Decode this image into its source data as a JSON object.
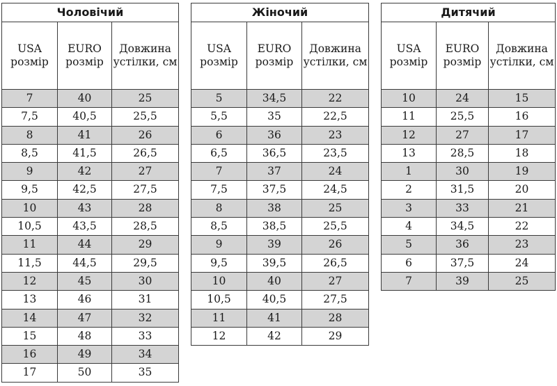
{
  "headers": {
    "usa": "USA розмір",
    "euro": "EURO розмір",
    "length": "Довжина устілки, см"
  },
  "tables": [
    {
      "key": "men",
      "title": "Чоловічий",
      "rows": [
        [
          "7",
          "40",
          "25"
        ],
        [
          "7,5",
          "40,5",
          "25,5"
        ],
        [
          "8",
          "41",
          "26"
        ],
        [
          "8,5",
          "41,5",
          "26,5"
        ],
        [
          "9",
          "42",
          "27"
        ],
        [
          "9,5",
          "42,5",
          "27,5"
        ],
        [
          "10",
          "43",
          "28"
        ],
        [
          "10,5",
          "43,5",
          "28,5"
        ],
        [
          "11",
          "44",
          "29"
        ],
        [
          "11,5",
          "44,5",
          "29,5"
        ],
        [
          "12",
          "45",
          "30"
        ],
        [
          "13",
          "46",
          "31"
        ],
        [
          "14",
          "47",
          "32"
        ],
        [
          "15",
          "48",
          "33"
        ],
        [
          "16",
          "49",
          "34"
        ],
        [
          "17",
          "50",
          "35"
        ]
      ]
    },
    {
      "key": "women",
      "title": "Жіночий",
      "rows": [
        [
          "5",
          "34,5",
          "22"
        ],
        [
          "5,5",
          "35",
          "22,5"
        ],
        [
          "6",
          "36",
          "23"
        ],
        [
          "6,5",
          "36,5",
          "23,5"
        ],
        [
          "7",
          "37",
          "24"
        ],
        [
          "7,5",
          "37,5",
          "24,5"
        ],
        [
          "8",
          "38",
          "25"
        ],
        [
          "8,5",
          "38,5",
          "25,5"
        ],
        [
          "9",
          "39",
          "26"
        ],
        [
          "9,5",
          "39,5",
          "26,5"
        ],
        [
          "10",
          "40",
          "27"
        ],
        [
          "10,5",
          "40,5",
          "27,5"
        ],
        [
          "11",
          "41",
          "28"
        ],
        [
          "12",
          "42",
          "29"
        ]
      ]
    },
    {
      "key": "kids",
      "title": "Дитячий",
      "rows": [
        [
          "10",
          "24",
          "15"
        ],
        [
          "11",
          "25,5",
          "16"
        ],
        [
          "12",
          "27",
          "17"
        ],
        [
          "13",
          "28,5",
          "18"
        ],
        [
          "1",
          "30",
          "19"
        ],
        [
          "2",
          "31,5",
          "20"
        ],
        [
          "3",
          "33",
          "21"
        ],
        [
          "4",
          "34,5",
          "22"
        ],
        [
          "5",
          "36",
          "23"
        ],
        [
          "6",
          "37,5",
          "24"
        ],
        [
          "7",
          "39",
          "25"
        ]
      ]
    }
  ],
  "colors": {
    "shade": "#d4d4d4",
    "border": "#3a3a3a"
  }
}
